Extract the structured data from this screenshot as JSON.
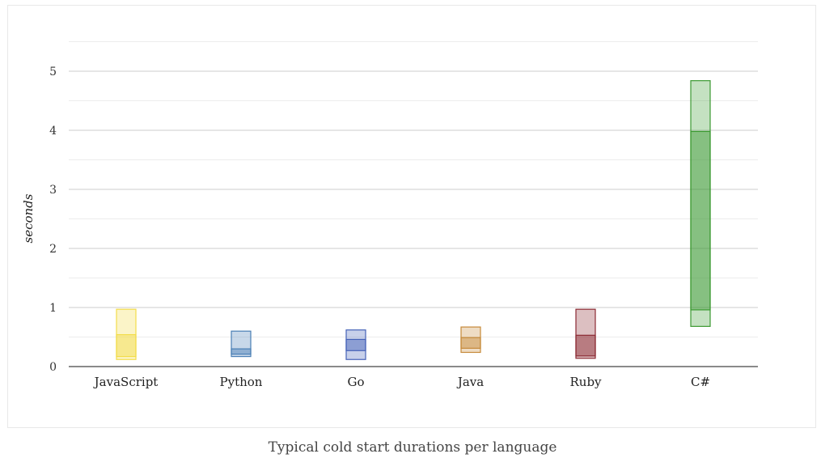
{
  "chart_data": {
    "type": "box",
    "title": "",
    "caption": "Typical cold start durations per language",
    "xlabel": "",
    "ylabel": "seconds",
    "ylim": [
      0,
      5.5
    ],
    "yticks": [
      0,
      1,
      2,
      3,
      4,
      5
    ],
    "grid": true,
    "categories": [
      "JavaScript",
      "Python",
      "Go",
      "Java",
      "Ruby",
      "C#"
    ],
    "series": [
      {
        "category": "JavaScript",
        "min": 0.12,
        "q1": 0.17,
        "q3": 0.54,
        "max": 0.97,
        "color": "#f2dc4a"
      },
      {
        "category": "Python",
        "min": 0.17,
        "q1": 0.21,
        "q3": 0.3,
        "max": 0.6,
        "color": "#4a7fb5"
      },
      {
        "category": "Go",
        "min": 0.12,
        "q1": 0.27,
        "q3": 0.46,
        "max": 0.62,
        "color": "#4562b8"
      },
      {
        "category": "Java",
        "min": 0.24,
        "q1": 0.31,
        "q3": 0.49,
        "max": 0.67,
        "color": "#c68a3a"
      },
      {
        "category": "Ruby",
        "min": 0.14,
        "q1": 0.18,
        "q3": 0.53,
        "max": 0.97,
        "color": "#8b2a33"
      },
      {
        "category": "C#",
        "min": 0.68,
        "q1": 0.96,
        "q3": 3.98,
        "max": 4.84,
        "color": "#3c9a32"
      }
    ]
  }
}
